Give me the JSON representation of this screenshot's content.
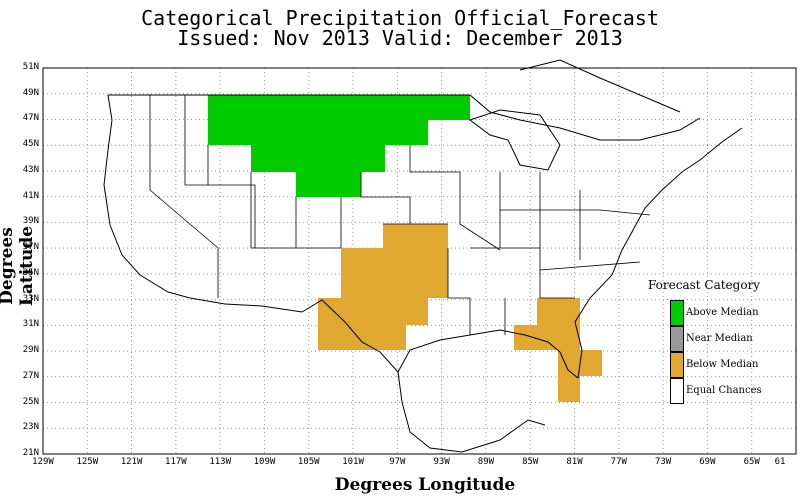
{
  "title_line1": "Categorical Precipitation Official_Forecast",
  "title_line2": "Issued: Nov 2013 Valid: December 2013",
  "y_axis_title": "Degrees Latitude",
  "x_axis_title": "Degrees Longitude",
  "lat_ticks": [
    "51N",
    "49N",
    "47N",
    "45N",
    "43N",
    "41N",
    "39N",
    "37N",
    "35N",
    "33N",
    "31N",
    "29N",
    "27N",
    "25N",
    "23N",
    "21N"
  ],
  "lon_ticks": [
    "129W",
    "125W",
    "121W",
    "117W",
    "113W",
    "109W",
    "105W",
    "101W",
    "97W",
    "93W",
    "89W",
    "85W",
    "81W",
    "77W",
    "73W",
    "69W",
    "65W",
    "61"
  ],
  "legend": {
    "title": "Forecast Category",
    "items": [
      {
        "label": "Above Median",
        "color": "#00cc00"
      },
      {
        "label": "Near Median",
        "color": "#999999"
      },
      {
        "label": "Below Median",
        "color": "#e0a830"
      },
      {
        "label": "Equal Chances",
        "color": "#ffffff"
      }
    ]
  },
  "colors": {
    "above": "#00cc00",
    "below": "#e0a830",
    "grid": "#999999"
  }
}
